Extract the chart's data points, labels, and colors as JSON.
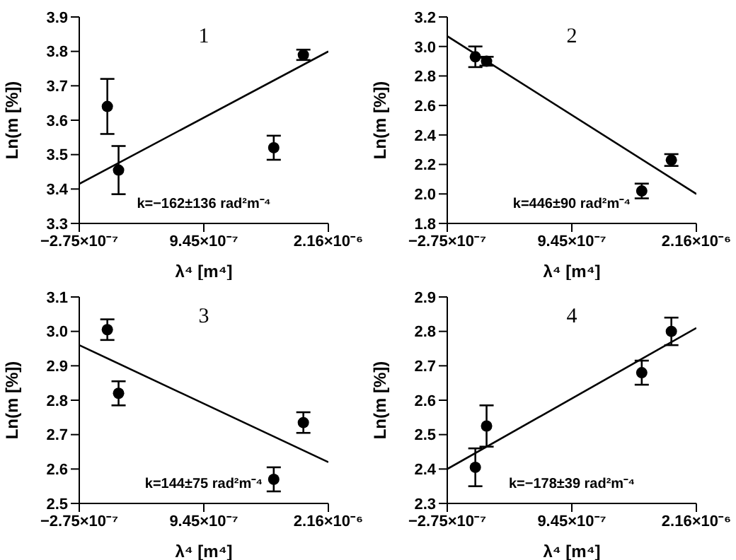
{
  "chart_data": [
    {
      "type": "scatter",
      "xlabel": "λ⁴ [m⁴]",
      "ylabel": "Ln(m [%])",
      "annotations": [
        "1",
        "k=−162±136 rad²m⁻⁴"
      ],
      "xlim": [
        -2.75e-07,
        2.165e-06
      ],
      "xticks": [
        {
          "value": -2.75e-07,
          "label": "−2.75×10⁻⁷"
        },
        {
          "value": 9.45e-07,
          "label": "9.45×10⁻⁷"
        },
        {
          "value": 2.165e-06,
          "label": "2.16×10⁻⁶"
        }
      ],
      "ylim": [
        3.3,
        3.9
      ],
      "yticks": [
        3.3,
        3.4,
        3.5,
        3.6,
        3.7,
        3.8,
        3.9
      ],
      "series": [
        {
          "color": "#000000",
          "marker": "circle",
          "x": [
            0,
            1.1e-07,
            1.63e-06,
            1.92e-06
          ],
          "values": [
            3.64,
            3.455,
            3.52,
            3.79
          ],
          "errors": [
            0.08,
            0.07,
            0.035,
            0.015
          ]
        },
        {
          "type": "line",
          "color": "#000000",
          "marker": "none",
          "x": [
            -2.75e-07,
            2.165e-06
          ],
          "values": [
            3.415,
            3.8
          ]
        }
      ]
    },
    {
      "type": "scatter",
      "xlabel": "λ⁴ [m⁴]",
      "ylabel": "Ln(m [%])",
      "annotations": [
        "2",
        "k=446±90 rad²m⁻⁴"
      ],
      "xlim": [
        -2.75e-07,
        2.165e-06
      ],
      "xticks": [
        {
          "value": -2.75e-07,
          "label": "−2.75×10⁻⁷"
        },
        {
          "value": 9.45e-07,
          "label": "9.45×10⁻⁷"
        },
        {
          "value": 2.165e-06,
          "label": "2.16×10⁻⁶"
        }
      ],
      "ylim": [
        1.8,
        3.2
      ],
      "yticks": [
        {
          "value": 1.8,
          "label": "1.8"
        },
        {
          "value": 2,
          "label": "2.0"
        },
        {
          "value": 2.2,
          "label": "2.2"
        },
        {
          "value": 2.4,
          "label": "2.4"
        },
        {
          "value": 2.6,
          "label": "2.6"
        },
        {
          "value": 2.8,
          "label": "2.8"
        },
        {
          "value": 3,
          "label": "3.0"
        },
        {
          "value": 3.2,
          "label": "3.2"
        }
      ],
      "series": [
        {
          "color": "#000000",
          "marker": "circle",
          "x": [
            0,
            1.1e-07,
            1.63e-06,
            1.92e-06
          ],
          "values": [
            2.93,
            2.9,
            2.02,
            2.23
          ],
          "errors": [
            0.07,
            0.03,
            0.05,
            0.04
          ]
        },
        {
          "type": "line",
          "color": "#000000",
          "marker": "none",
          "x": [
            -2.75e-07,
            2.165e-06
          ],
          "values": [
            3.07,
            2.0
          ]
        }
      ]
    },
    {
      "type": "scatter",
      "xlabel": "λ⁴ [m⁴]",
      "ylabel": "Ln(m [%])",
      "annotations": [
        "3",
        "k=144±75 rad²m⁻⁴"
      ],
      "xlim": [
        -2.75e-07,
        2.165e-06
      ],
      "xticks": [
        {
          "value": -2.75e-07,
          "label": "−2.75×10⁻⁷"
        },
        {
          "value": 9.45e-07,
          "label": "9.45×10⁻⁷"
        },
        {
          "value": 2.165e-06,
          "label": "2.16×10⁻⁶"
        }
      ],
      "ylim": [
        2.5,
        3.1
      ],
      "yticks": [
        2.5,
        2.6,
        2.7,
        2.8,
        2.9,
        {
          "value": 3,
          "label": "3.0"
        },
        3.1
      ],
      "series": [
        {
          "color": "#000000",
          "marker": "circle",
          "x": [
            0,
            1.1e-07,
            1.63e-06,
            1.92e-06
          ],
          "values": [
            3.005,
            2.82,
            2.57,
            2.735
          ],
          "errors": [
            0.03,
            0.035,
            0.035,
            0.03
          ]
        },
        {
          "type": "line",
          "color": "#000000",
          "marker": "none",
          "x": [
            -2.75e-07,
            2.165e-06
          ],
          "values": [
            2.96,
            2.62
          ]
        }
      ]
    },
    {
      "type": "scatter",
      "xlabel": "λ⁴ [m⁴]",
      "ylabel": "Ln(m [%])",
      "annotations": [
        "4",
        "k=−178±39 rad²m⁻⁴"
      ],
      "xlim": [
        -2.75e-07,
        2.165e-06
      ],
      "xticks": [
        {
          "value": -2.75e-07,
          "label": "−2.75×10⁻⁷"
        },
        {
          "value": 9.45e-07,
          "label": "9.45×10⁻⁷"
        },
        {
          "value": 2.165e-06,
          "label": "2.16×10⁻⁶"
        }
      ],
      "ylim": [
        2.3,
        2.9
      ],
      "yticks": [
        2.3,
        2.4,
        2.5,
        2.6,
        2.7,
        2.8,
        2.9
      ],
      "series": [
        {
          "color": "#000000",
          "marker": "circle",
          "x": [
            0,
            1.1e-07,
            1.63e-06,
            1.92e-06
          ],
          "values": [
            2.405,
            2.525,
            2.68,
            2.8
          ],
          "errors": [
            0.055,
            0.06,
            0.035,
            0.04
          ]
        },
        {
          "type": "line",
          "color": "#000000",
          "marker": "none",
          "x": [
            -2.75e-07,
            2.165e-06
          ],
          "values": [
            2.4,
            2.81
          ]
        }
      ]
    }
  ]
}
